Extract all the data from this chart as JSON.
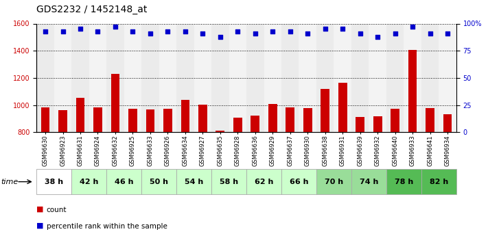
{
  "title": "GDS2232 / 1452148_at",
  "samples": [
    "GSM96630",
    "GSM96923",
    "GSM96631",
    "GSM96924",
    "GSM96632",
    "GSM96925",
    "GSM96633",
    "GSM96926",
    "GSM96634",
    "GSM96927",
    "GSM96635",
    "GSM96928",
    "GSM96636",
    "GSM96929",
    "GSM96637",
    "GSM96930",
    "GSM96638",
    "GSM96931",
    "GSM96639",
    "GSM96932",
    "GSM96640",
    "GSM96933",
    "GSM96641",
    "GSM96934"
  ],
  "counts": [
    980,
    960,
    1055,
    980,
    1230,
    970,
    965,
    970,
    1040,
    1005,
    810,
    905,
    920,
    1010,
    980,
    975,
    1120,
    1165,
    910,
    915,
    970,
    1405,
    975,
    930
  ],
  "percentile_ranks": [
    93,
    93,
    95,
    93,
    97,
    93,
    91,
    93,
    93,
    91,
    88,
    93,
    91,
    93,
    93,
    91,
    95,
    95,
    91,
    88,
    91,
    97,
    91,
    91
  ],
  "time_groups": [
    {
      "label": "38 h",
      "start": 0,
      "end": 2,
      "color": "#ffffff"
    },
    {
      "label": "42 h",
      "start": 2,
      "end": 4,
      "color": "#ccffcc"
    },
    {
      "label": "46 h",
      "start": 4,
      "end": 6,
      "color": "#ccffcc"
    },
    {
      "label": "50 h",
      "start": 6,
      "end": 8,
      "color": "#ccffcc"
    },
    {
      "label": "54 h",
      "start": 8,
      "end": 10,
      "color": "#ccffcc"
    },
    {
      "label": "58 h",
      "start": 10,
      "end": 12,
      "color": "#ccffcc"
    },
    {
      "label": "62 h",
      "start": 12,
      "end": 14,
      "color": "#ccffcc"
    },
    {
      "label": "66 h",
      "start": 14,
      "end": 16,
      "color": "#ccffcc"
    },
    {
      "label": "70 h",
      "start": 16,
      "end": 18,
      "color": "#99dd99"
    },
    {
      "label": "74 h",
      "start": 18,
      "end": 20,
      "color": "#99dd99"
    },
    {
      "label": "78 h",
      "start": 20,
      "end": 22,
      "color": "#55bb55"
    },
    {
      "label": "82 h",
      "start": 22,
      "end": 24,
      "color": "#55bb55"
    }
  ],
  "ylim_left": [
    800,
    1600
  ],
  "ylim_right": [
    0,
    100
  ],
  "yticks_left": [
    800,
    1000,
    1200,
    1400,
    1600
  ],
  "yticks_right": [
    0,
    25,
    50,
    75,
    100
  ],
  "bar_color": "#cc0000",
  "dot_color": "#0000cc",
  "xlabel_left": "count",
  "xlabel_right": "percentile rank within the sample",
  "title_fontsize": 10,
  "tick_fontsize": 7,
  "sample_fontsize": 6,
  "time_fontsize": 8
}
